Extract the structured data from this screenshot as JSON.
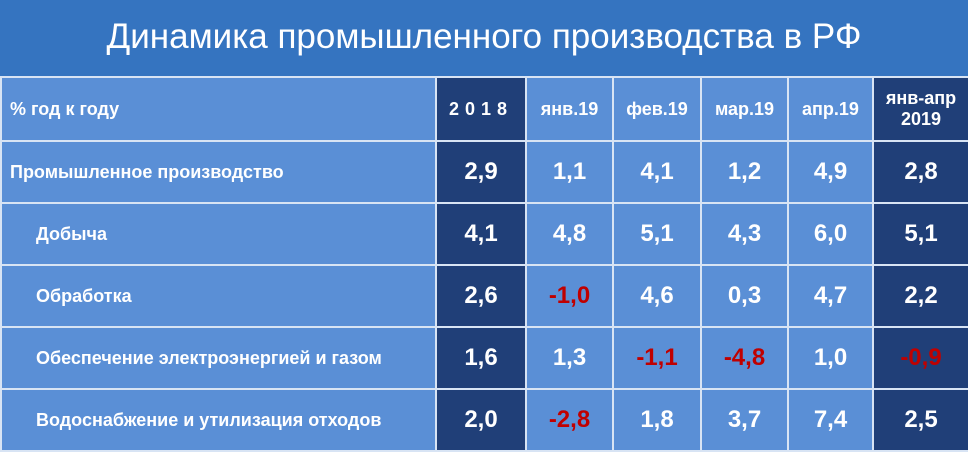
{
  "header": {
    "title": "Динамика промышленного производства в РФ"
  },
  "table": {
    "columns": [
      "% год к году",
      "2018",
      "янв.19",
      "фев.19",
      "мар.19",
      "апр.19",
      "янв-апр 2019"
    ],
    "rows": [
      [
        "Промышленное производство",
        "2,9",
        "1,1",
        "4,1",
        "1,2",
        "4,9",
        "2,8"
      ],
      [
        "Добыча",
        "4,1",
        "4,8",
        "5,1",
        "4,3",
        "6,0",
        "5,1"
      ],
      [
        "Обработка",
        "2,6",
        "-1,0",
        "4,6",
        "0,3",
        "4,7",
        "2,2"
      ],
      [
        "Обеспечение электроэнергией и газом",
        "1,6",
        "1,3",
        "-1,1",
        "-4,8",
        "1,0",
        "-0,9"
      ],
      [
        "Водоснабжение и утилизация отходов",
        "2,0",
        "-2,8",
        "1,8",
        "3,7",
        "7,4",
        "2,5"
      ]
    ]
  }
}
